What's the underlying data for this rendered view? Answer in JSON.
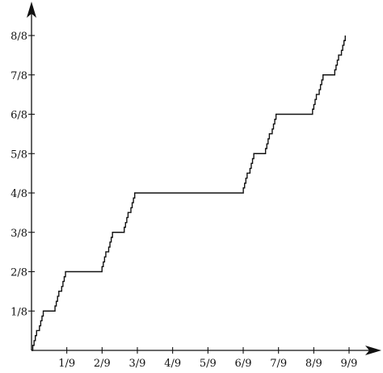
{
  "chart_data": {
    "type": "line",
    "title": "",
    "xlabel": "",
    "ylabel": "",
    "xlim": [
      0,
      1
    ],
    "ylim": [
      0,
      1
    ],
    "grid": false,
    "legend": "none",
    "x_ticks": [
      {
        "value": 0.1111,
        "label": "1/9"
      },
      {
        "value": 0.2222,
        "label": "2/9"
      },
      {
        "value": 0.3333,
        "label": "3/9"
      },
      {
        "value": 0.4444,
        "label": "4/9"
      },
      {
        "value": 0.5556,
        "label": "5/9"
      },
      {
        "value": 0.6667,
        "label": "6/9"
      },
      {
        "value": 0.7778,
        "label": "7/9"
      },
      {
        "value": 0.8889,
        "label": "8/9"
      },
      {
        "value": 1.0,
        "label": "9/9"
      }
    ],
    "y_ticks": [
      {
        "value": 0.125,
        "label": "1/8"
      },
      {
        "value": 0.25,
        "label": "2/8"
      },
      {
        "value": 0.375,
        "label": "3/8"
      },
      {
        "value": 0.5,
        "label": "4/8"
      },
      {
        "value": 0.625,
        "label": "5/8"
      },
      {
        "value": 0.75,
        "label": "6/8"
      },
      {
        "value": 0.875,
        "label": "7/8"
      },
      {
        "value": 1.0,
        "label": "8/8"
      }
    ],
    "series": [
      {
        "color": "#111111",
        "points": [
          [
            0.0,
            0.0
          ],
          [
            0.004,
            0.0
          ],
          [
            0.004,
            0.016
          ],
          [
            0.008,
            0.016
          ],
          [
            0.008,
            0.031
          ],
          [
            0.012,
            0.031
          ],
          [
            0.012,
            0.047
          ],
          [
            0.016,
            0.047
          ],
          [
            0.016,
            0.063
          ],
          [
            0.025,
            0.063
          ],
          [
            0.025,
            0.078
          ],
          [
            0.029,
            0.078
          ],
          [
            0.029,
            0.094
          ],
          [
            0.033,
            0.094
          ],
          [
            0.033,
            0.109
          ],
          [
            0.037,
            0.109
          ],
          [
            0.037,
            0.125
          ],
          [
            0.074,
            0.125
          ],
          [
            0.074,
            0.141
          ],
          [
            0.078,
            0.141
          ],
          [
            0.078,
            0.156
          ],
          [
            0.082,
            0.156
          ],
          [
            0.082,
            0.172
          ],
          [
            0.086,
            0.172
          ],
          [
            0.086,
            0.188
          ],
          [
            0.095,
            0.188
          ],
          [
            0.095,
            0.203
          ],
          [
            0.099,
            0.203
          ],
          [
            0.099,
            0.219
          ],
          [
            0.103,
            0.219
          ],
          [
            0.103,
            0.234
          ],
          [
            0.107,
            0.234
          ],
          [
            0.107,
            0.25
          ],
          [
            0.222,
            0.25
          ],
          [
            0.222,
            0.266
          ],
          [
            0.226,
            0.266
          ],
          [
            0.226,
            0.281
          ],
          [
            0.23,
            0.281
          ],
          [
            0.23,
            0.297
          ],
          [
            0.234,
            0.297
          ],
          [
            0.234,
            0.313
          ],
          [
            0.243,
            0.313
          ],
          [
            0.243,
            0.328
          ],
          [
            0.247,
            0.328
          ],
          [
            0.247,
            0.344
          ],
          [
            0.251,
            0.344
          ],
          [
            0.251,
            0.359
          ],
          [
            0.255,
            0.359
          ],
          [
            0.255,
            0.375
          ],
          [
            0.292,
            0.375
          ],
          [
            0.292,
            0.391
          ],
          [
            0.296,
            0.391
          ],
          [
            0.296,
            0.406
          ],
          [
            0.3,
            0.406
          ],
          [
            0.3,
            0.422
          ],
          [
            0.304,
            0.422
          ],
          [
            0.304,
            0.438
          ],
          [
            0.313,
            0.438
          ],
          [
            0.313,
            0.453
          ],
          [
            0.317,
            0.453
          ],
          [
            0.317,
            0.469
          ],
          [
            0.321,
            0.469
          ],
          [
            0.321,
            0.484
          ],
          [
            0.325,
            0.484
          ],
          [
            0.325,
            0.5
          ],
          [
            0.667,
            0.5
          ],
          [
            0.667,
            0.516
          ],
          [
            0.671,
            0.516
          ],
          [
            0.671,
            0.531
          ],
          [
            0.675,
            0.531
          ],
          [
            0.675,
            0.547
          ],
          [
            0.679,
            0.547
          ],
          [
            0.679,
            0.563
          ],
          [
            0.688,
            0.563
          ],
          [
            0.688,
            0.578
          ],
          [
            0.692,
            0.578
          ],
          [
            0.692,
            0.594
          ],
          [
            0.696,
            0.594
          ],
          [
            0.696,
            0.609
          ],
          [
            0.7,
            0.609
          ],
          [
            0.7,
            0.625
          ],
          [
            0.737,
            0.625
          ],
          [
            0.737,
            0.641
          ],
          [
            0.741,
            0.641
          ],
          [
            0.741,
            0.656
          ],
          [
            0.745,
            0.656
          ],
          [
            0.745,
            0.672
          ],
          [
            0.749,
            0.672
          ],
          [
            0.749,
            0.688
          ],
          [
            0.758,
            0.688
          ],
          [
            0.758,
            0.703
          ],
          [
            0.762,
            0.703
          ],
          [
            0.762,
            0.719
          ],
          [
            0.766,
            0.719
          ],
          [
            0.766,
            0.734
          ],
          [
            0.77,
            0.734
          ],
          [
            0.77,
            0.75
          ],
          [
            0.885,
            0.75
          ],
          [
            0.885,
            0.766
          ],
          [
            0.889,
            0.766
          ],
          [
            0.889,
            0.781
          ],
          [
            0.893,
            0.781
          ],
          [
            0.893,
            0.797
          ],
          [
            0.897,
            0.797
          ],
          [
            0.897,
            0.813
          ],
          [
            0.906,
            0.813
          ],
          [
            0.906,
            0.828
          ],
          [
            0.91,
            0.828
          ],
          [
            0.91,
            0.844
          ],
          [
            0.914,
            0.844
          ],
          [
            0.914,
            0.859
          ],
          [
            0.918,
            0.859
          ],
          [
            0.918,
            0.875
          ],
          [
            0.955,
            0.875
          ],
          [
            0.955,
            0.891
          ],
          [
            0.959,
            0.891
          ],
          [
            0.959,
            0.906
          ],
          [
            0.963,
            0.906
          ],
          [
            0.963,
            0.922
          ],
          [
            0.967,
            0.922
          ],
          [
            0.967,
            0.938
          ],
          [
            0.976,
            0.938
          ],
          [
            0.976,
            0.953
          ],
          [
            0.98,
            0.953
          ],
          [
            0.98,
            0.969
          ],
          [
            0.984,
            0.969
          ],
          [
            0.984,
            0.984
          ],
          [
            0.988,
            0.984
          ],
          [
            0.988,
            1.0
          ]
        ]
      }
    ]
  }
}
